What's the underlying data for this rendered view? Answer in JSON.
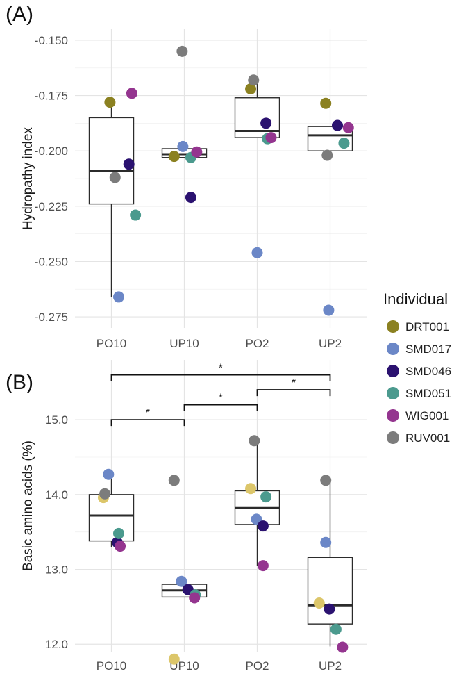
{
  "chart_data": [
    {
      "type": "box",
      "panel_label": "(A)",
      "ylabel": "Hydropathy index",
      "categories": [
        "PO10",
        "UP10",
        "PO2",
        "UP2"
      ],
      "ylim": [
        -0.28,
        -0.145
      ],
      "yticks": [
        -0.275,
        -0.25,
        -0.225,
        -0.2,
        -0.175,
        -0.15
      ],
      "ytick_labels": [
        "-0.275",
        "-0.250",
        "-0.225",
        "-0.200",
        "-0.175",
        "-0.150"
      ],
      "boxes": [
        {
          "category": "PO10",
          "q1": -0.224,
          "median": -0.209,
          "q3": -0.185,
          "whisker_low": -0.266,
          "whisker_high": -0.178
        },
        {
          "category": "UP10",
          "q1": -0.203,
          "median": -0.2015,
          "q3": -0.199,
          "whisker_low": -0.203,
          "whisker_high": -0.199
        },
        {
          "category": "PO2",
          "q1": -0.194,
          "median": -0.191,
          "q3": -0.176,
          "whisker_low": -0.194,
          "whisker_high": -0.168
        },
        {
          "category": "UP2",
          "q1": -0.2,
          "median": -0.193,
          "q3": -0.189,
          "whisker_low": -0.2,
          "whisker_high": -0.189
        }
      ],
      "points": [
        {
          "category": "PO10",
          "individual": "DRT001",
          "y": -0.178,
          "jitter": -0.02
        },
        {
          "category": "PO10",
          "individual": "SMD017",
          "y": -0.266,
          "jitter": 0.1
        },
        {
          "category": "PO10",
          "individual": "SMD046",
          "y": -0.206,
          "jitter": 0.24
        },
        {
          "category": "PO10",
          "individual": "SMD051",
          "y": -0.229,
          "jitter": 0.33
        },
        {
          "category": "PO10",
          "individual": "WIG001",
          "y": -0.174,
          "jitter": 0.28
        },
        {
          "category": "PO10",
          "individual": "RUV001",
          "y": -0.212,
          "jitter": 0.05
        },
        {
          "category": "UP10",
          "individual": "DRT001",
          "y": -0.2025,
          "jitter": -0.14
        },
        {
          "category": "UP10",
          "individual": "SMD017",
          "y": -0.198,
          "jitter": -0.02
        },
        {
          "category": "UP10",
          "individual": "SMD046",
          "y": -0.221,
          "jitter": 0.09
        },
        {
          "category": "UP10",
          "individual": "SMD051",
          "y": -0.203,
          "jitter": 0.09
        },
        {
          "category": "UP10",
          "individual": "WIG001",
          "y": -0.2005,
          "jitter": 0.17
        },
        {
          "category": "UP10",
          "individual": "RUV001",
          "y": -0.155,
          "jitter": -0.03
        },
        {
          "category": "PO2",
          "individual": "DRT001",
          "y": -0.172,
          "jitter": -0.09
        },
        {
          "category": "PO2",
          "individual": "SMD017",
          "y": -0.246,
          "jitter": 0.0
        },
        {
          "category": "PO2",
          "individual": "SMD046",
          "y": -0.1875,
          "jitter": 0.12
        },
        {
          "category": "PO2",
          "individual": "SMD051",
          "y": -0.1945,
          "jitter": 0.14
        },
        {
          "category": "PO2",
          "individual": "WIG001",
          "y": -0.194,
          "jitter": 0.19
        },
        {
          "category": "PO2",
          "individual": "RUV001",
          "y": -0.168,
          "jitter": -0.05
        },
        {
          "category": "UP2",
          "individual": "DRT001",
          "y": -0.1785,
          "jitter": -0.06
        },
        {
          "category": "UP2",
          "individual": "SMD017",
          "y": -0.272,
          "jitter": -0.02
        },
        {
          "category": "UP2",
          "individual": "SMD046",
          "y": -0.1885,
          "jitter": 0.1
        },
        {
          "category": "UP2",
          "individual": "SMD051",
          "y": -0.1965,
          "jitter": 0.19
        },
        {
          "category": "UP2",
          "individual": "WIG001",
          "y": -0.1895,
          "jitter": 0.25
        },
        {
          "category": "UP2",
          "individual": "RUV001",
          "y": -0.202,
          "jitter": -0.04
        }
      ]
    },
    {
      "type": "box",
      "panel_label": "(B)",
      "ylabel": "Basic amino acids (%)",
      "categories": [
        "PO10",
        "UP10",
        "PO2",
        "UP2"
      ],
      "ylim": [
        11.9,
        15.8
      ],
      "yticks": [
        12.0,
        13.0,
        14.0,
        15.0
      ],
      "ytick_labels": [
        "12.0",
        "13.0",
        "14.0",
        "15.0"
      ],
      "boxes": [
        {
          "category": "PO10",
          "q1": 13.38,
          "median": 13.72,
          "q3": 14.0,
          "whisker_low": 13.3,
          "whisker_high": 14.27
        },
        {
          "category": "UP10",
          "q1": 12.63,
          "median": 12.72,
          "q3": 12.8,
          "whisker_low": 12.63,
          "whisker_high": 12.8
        },
        {
          "category": "PO2",
          "q1": 13.6,
          "median": 13.82,
          "q3": 14.05,
          "whisker_low": 13.05,
          "whisker_high": 14.72
        },
        {
          "category": "UP2",
          "q1": 12.27,
          "median": 12.52,
          "q3": 13.16,
          "whisker_low": 11.97,
          "whisker_high": 14.2
        }
      ],
      "points": [
        {
          "category": "PO10",
          "individual": "yellow",
          "y": 13.96,
          "jitter": -0.11
        },
        {
          "category": "PO10",
          "individual": "SMD017",
          "y": 14.27,
          "jitter": -0.04
        },
        {
          "category": "PO10",
          "individual": "SMD046",
          "y": 13.36,
          "jitter": 0.08
        },
        {
          "category": "PO10",
          "individual": "SMD051",
          "y": 13.48,
          "jitter": 0.1
        },
        {
          "category": "PO10",
          "individual": "WIG001",
          "y": 13.31,
          "jitter": 0.12
        },
        {
          "category": "PO10",
          "individual": "RUV001",
          "y": 14.01,
          "jitter": -0.09
        },
        {
          "category": "UP10",
          "individual": "yellow",
          "y": 11.8,
          "jitter": -0.14
        },
        {
          "category": "UP10",
          "individual": "SMD017",
          "y": 12.84,
          "jitter": -0.04
        },
        {
          "category": "UP10",
          "individual": "SMD046",
          "y": 12.73,
          "jitter": 0.05
        },
        {
          "category": "UP10",
          "individual": "SMD051",
          "y": 12.66,
          "jitter": 0.15
        },
        {
          "category": "UP10",
          "individual": "WIG001",
          "y": 12.62,
          "jitter": 0.14
        },
        {
          "category": "UP10",
          "individual": "RUV001",
          "y": 14.19,
          "jitter": -0.14
        },
        {
          "category": "PO2",
          "individual": "yellow",
          "y": 14.08,
          "jitter": -0.09
        },
        {
          "category": "PO2",
          "individual": "SMD017",
          "y": 13.67,
          "jitter": -0.01
        },
        {
          "category": "PO2",
          "individual": "SMD046",
          "y": 13.58,
          "jitter": 0.08
        },
        {
          "category": "PO2",
          "individual": "SMD051",
          "y": 13.97,
          "jitter": 0.12
        },
        {
          "category": "PO2",
          "individual": "WIG001",
          "y": 13.05,
          "jitter": 0.08
        },
        {
          "category": "PO2",
          "individual": "RUV001",
          "y": 14.72,
          "jitter": -0.04
        },
        {
          "category": "UP2",
          "individual": "yellow",
          "y": 12.55,
          "jitter": -0.15
        },
        {
          "category": "UP2",
          "individual": "SMD017",
          "y": 13.36,
          "jitter": -0.06
        },
        {
          "category": "UP2",
          "individual": "SMD046",
          "y": 12.47,
          "jitter": -0.01
        },
        {
          "category": "UP2",
          "individual": "SMD051",
          "y": 12.2,
          "jitter": 0.08
        },
        {
          "category": "UP2",
          "individual": "WIG001",
          "y": 11.96,
          "jitter": 0.17
        },
        {
          "category": "UP2",
          "individual": "RUV001",
          "y": 14.19,
          "jitter": -0.06
        }
      ],
      "significance": [
        {
          "from": "PO10",
          "to": "UP10",
          "y": 15.0,
          "label": "*"
        },
        {
          "from": "UP10",
          "to": "PO2",
          "y": 15.2,
          "label": "*"
        },
        {
          "from": "PO2",
          "to": "UP2",
          "y": 15.4,
          "label": "*"
        },
        {
          "from": "PO10",
          "to": "UP2",
          "y": 15.6,
          "label": "*"
        }
      ]
    }
  ],
  "legend": {
    "title": "Individual",
    "placement": "right",
    "items": [
      {
        "label": "DRT001",
        "key": "DRT001",
        "color": "#8b8121"
      },
      {
        "label": "SMD017",
        "key": "SMD017",
        "color": "#6b87c7"
      },
      {
        "label": "SMD046",
        "key": "SMD046",
        "color": "#2b1270"
      },
      {
        "label": "SMD051",
        "key": "SMD051",
        "color": "#4b9a8e"
      },
      {
        "label": "WIG001",
        "key": "WIG001",
        "color": "#94358f"
      },
      {
        "label": "RUV001",
        "key": "RUV001",
        "color": "#7c7c7c"
      }
    ]
  },
  "colors": {
    "DRT001": "#8b8121",
    "SMD017": "#6b87c7",
    "SMD046": "#2b1270",
    "SMD051": "#4b9a8e",
    "WIG001": "#94358f",
    "RUV001": "#7c7c7c",
    "yellow": "#dcc66a"
  }
}
